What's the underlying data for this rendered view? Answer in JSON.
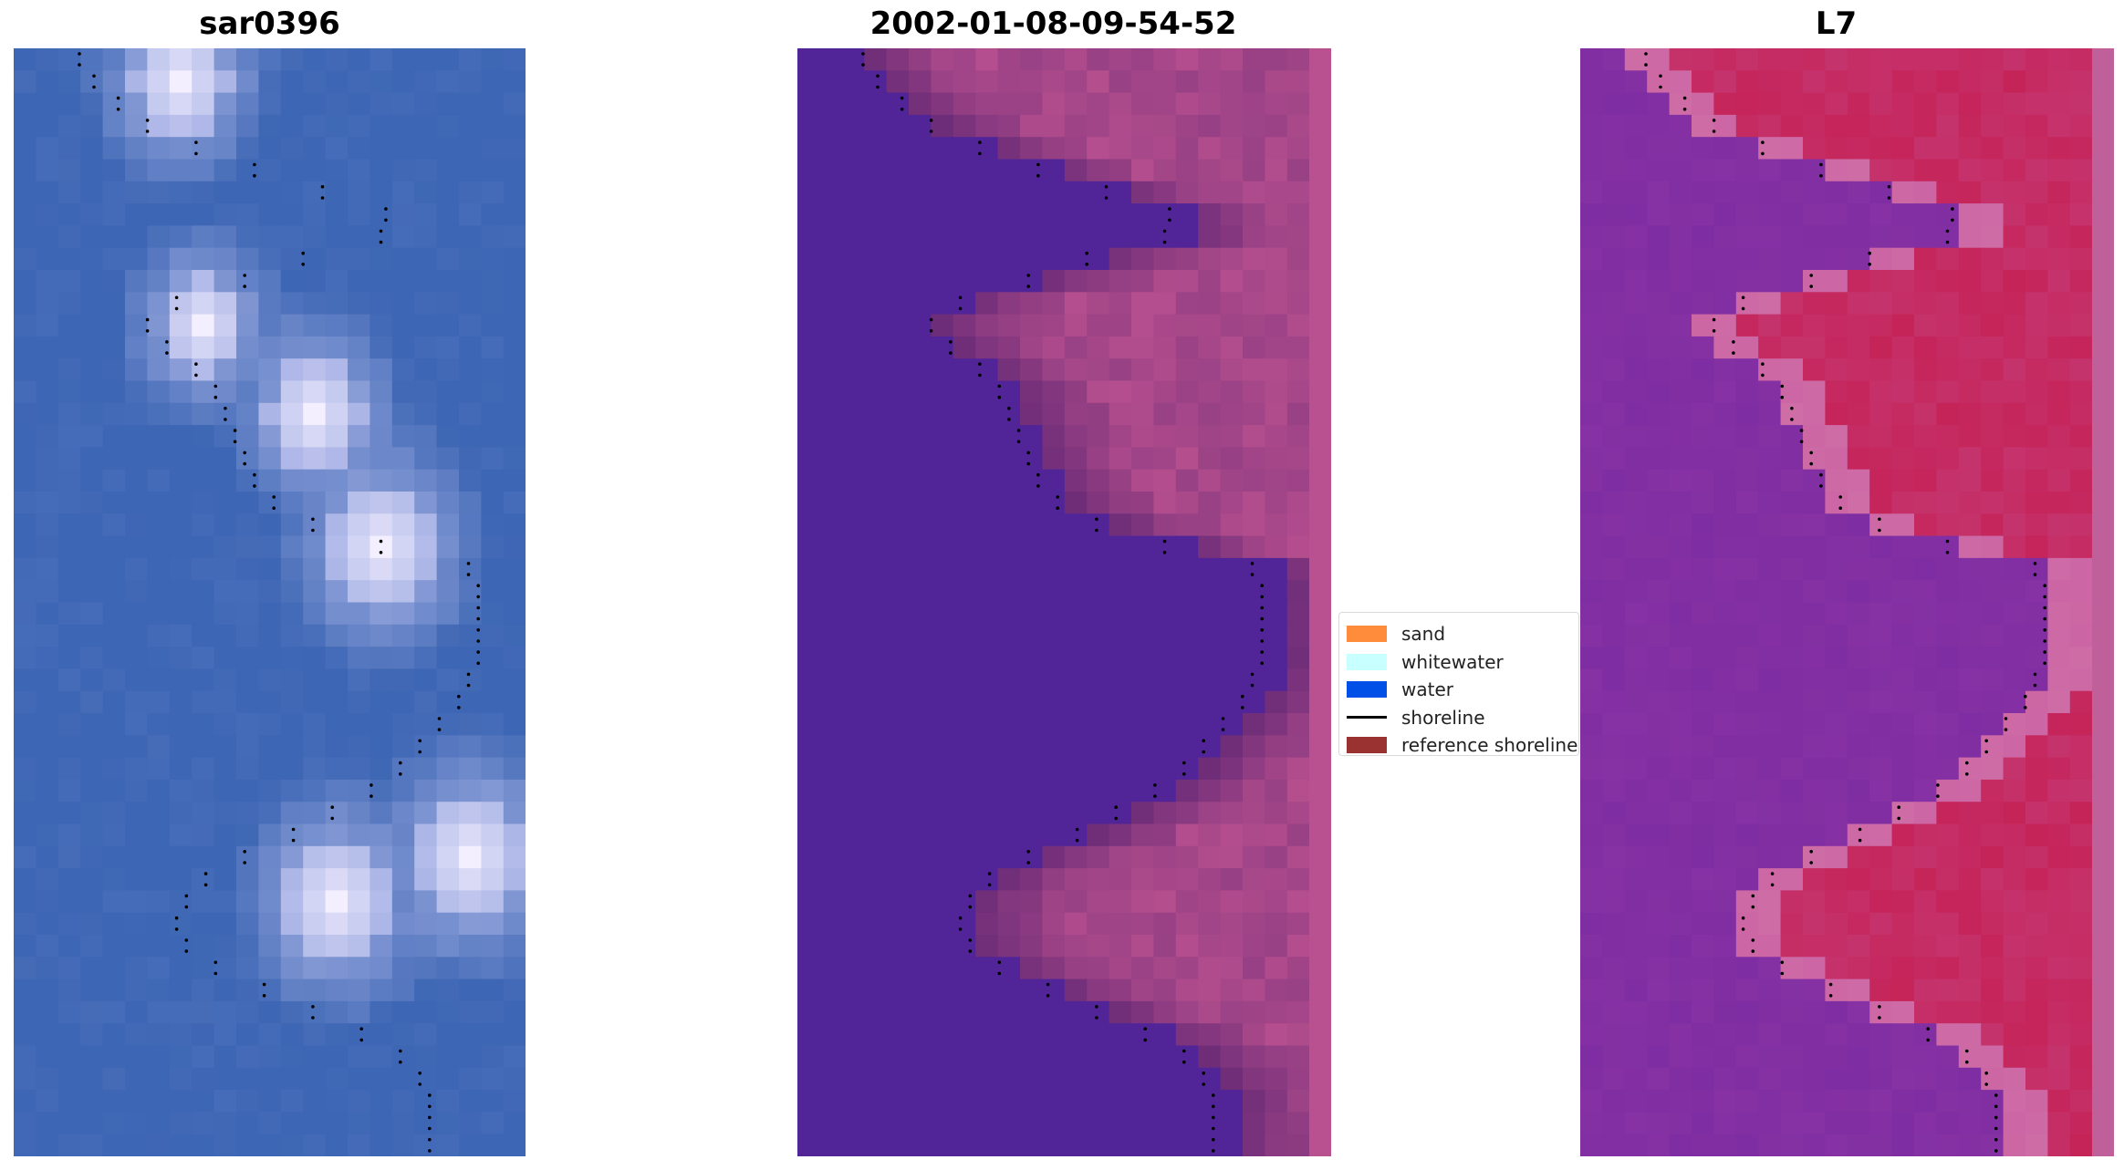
{
  "panels": [
    {
      "title": "sar0396",
      "kind": "rgb"
    },
    {
      "title": "2002-01-08-09-54-52",
      "kind": "classified"
    },
    {
      "title": "L7",
      "kind": "index"
    }
  ],
  "legend": {
    "items": [
      {
        "label": "sand",
        "type": "patch",
        "color": "#ff8c3a"
      },
      {
        "label": "whitewater",
        "type": "patch",
        "color": "#c8ffff"
      },
      {
        "label": "water",
        "type": "patch",
        "color": "#0050e8"
      },
      {
        "label": "shoreline",
        "type": "line",
        "color": "#000000"
      },
      {
        "label": "reference shoreline",
        "type": "patch",
        "color": "#9a3232"
      }
    ]
  },
  "colors": {
    "rgb_base": "#3d66b4",
    "classified_water": "#512598",
    "classified_land": "#b9508f",
    "index_low": "#7a2aa0",
    "index_high": "#c41c4e",
    "shoreline_dots": "#000000"
  }
}
